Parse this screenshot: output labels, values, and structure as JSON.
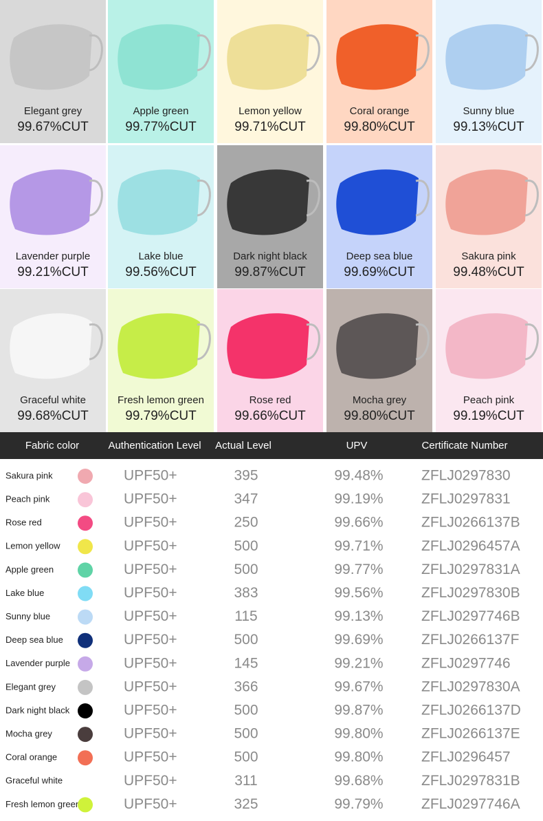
{
  "tiles": [
    {
      "name": "Elegant grey",
      "cut": "99.67%CUT",
      "background": "#d9d9d9",
      "color": "#c6c6c6"
    },
    {
      "name": "Apple green",
      "cut": "99.77%CUT",
      "background": "#b9f1e7",
      "color": "#8fe3d3"
    },
    {
      "name": "Lemon yellow",
      "cut": "99.71%CUT",
      "background": "#fff7dd",
      "color": "#eedf98"
    },
    {
      "name": "Coral orange",
      "cut": "99.80%CUT",
      "background": "#ffd7c2",
      "color": "#f0602a"
    },
    {
      "name": "Sunny blue",
      "cut": "99.13%CUT",
      "background": "#e5f2fc",
      "color": "#aecff0"
    },
    {
      "name": "Lavender purple",
      "cut": "99.21%CUT",
      "background": "#f6edfc",
      "color": "#b598e6"
    },
    {
      "name": "Lake blue",
      "cut": "99.56%CUT",
      "background": "#d5f3f5",
      "color": "#9de0e3"
    },
    {
      "name": "Dark night black",
      "cut": "99.87%CUT",
      "background": "#a8a8a8",
      "color": "#383838"
    },
    {
      "name": "Deep sea blue",
      "cut": "99.69%CUT",
      "background": "#c5d3fa",
      "color": "#1f4fd6"
    },
    {
      "name": "Sakura pink",
      "cut": "99.48%CUT",
      "background": "#fbe1dc",
      "color": "#f0a398"
    },
    {
      "name": "Graceful white",
      "cut": "99.68%CUT",
      "background": "#e4e4e4",
      "color": "#f6f6f6"
    },
    {
      "name": "Fresh lemon green",
      "cut": "99.79%CUT",
      "background": "#f1fad4",
      "color": "#c6ed48"
    },
    {
      "name": "Rose red",
      "cut": "99.66%CUT",
      "background": "#fbd5e7",
      "color": "#f4336a"
    },
    {
      "name": "Mocha grey",
      "cut": "99.80%CUT",
      "background": "#bdb2ad",
      "color": "#5d5757"
    },
    {
      "name": "Peach pink",
      "cut": "99.19%CUT",
      "background": "#fbe7f0",
      "color": "#f3b7c7"
    }
  ],
  "table": {
    "header": [
      "Fabric color",
      "Authentication Level",
      "Actual Level",
      "UPV",
      "Certificate Number"
    ],
    "rows": [
      {
        "name": "Sakura pink",
        "color": "#f0a9b0",
        "level": "UPF50+",
        "actual": "395",
        "upv": "99.48%",
        "cert": "ZFLJ0297830"
      },
      {
        "name": "Peach pink",
        "color": "#f9c5d8",
        "level": "UPF50+",
        "actual": "347",
        "upv": "99.19%",
        "cert": "ZFLJ0297831"
      },
      {
        "name": "Rose red",
        "color": "#f34b83",
        "level": "UPF50+",
        "actual": "250",
        "upv": "99.66%",
        "cert": "ZFLJ0266137B"
      },
      {
        "name": "Lemon yellow",
        "color": "#f0e64a",
        "level": "UPF50+",
        "actual": "500",
        "upv": "99.71%",
        "cert": "ZFLJ0296457A"
      },
      {
        "name": "Apple green",
        "color": "#5fd3a6",
        "level": "UPF50+",
        "actual": "500",
        "upv": "99.77%",
        "cert": "ZFLJ0297831A"
      },
      {
        "name": "Lake blue",
        "color": "#80dcf5",
        "level": "UPF50+",
        "actual": "383",
        "upv": "99.56%",
        "cert": "ZFLJ0297830B"
      },
      {
        "name": "Sunny blue",
        "color": "#bcdaf5",
        "level": "UPF50+",
        "actual": "115",
        "upv": "99.13%",
        "cert": "ZFLJ0297746B"
      },
      {
        "name": "Deep sea blue",
        "color": "#10307a",
        "level": "UPF50+",
        "actual": "500",
        "upv": "99.69%",
        "cert": "ZFLJ0266137F"
      },
      {
        "name": "Lavender purple",
        "color": "#c6a9e8",
        "level": "UPF50+",
        "actual": "145",
        "upv": "99.21%",
        "cert": "ZFLJ0297746"
      },
      {
        "name": "Elegant grey",
        "color": "#c4c4c4",
        "level": "UPF50+",
        "actual": "366",
        "upv": "99.67%",
        "cert": "ZFLJ0297830A"
      },
      {
        "name": "Dark night black",
        "color": "#000000",
        "level": "UPF50+",
        "actual": "500",
        "upv": "99.87%",
        "cert": "ZFLJ0266137D"
      },
      {
        "name": "Mocha grey",
        "color": "#4a3d3d",
        "level": "UPF50+",
        "actual": "500",
        "upv": "99.80%",
        "cert": "ZFLJ0266137E"
      },
      {
        "name": "Coral orange",
        "color": "#f26f55",
        "level": "UPF50+",
        "actual": "500",
        "upv": "99.80%",
        "cert": "ZFLJ0296457"
      },
      {
        "name": "Graceful white",
        "color": "#ffffff",
        "level": "UPF50+",
        "actual": "311",
        "upv": "99.68%",
        "cert": "ZFLJ0297831B"
      },
      {
        "name": "Fresh lemon green",
        "color": "#cff23a",
        "level": "UPF50+",
        "actual": "325",
        "upv": "99.79%",
        "cert": "ZFLJ0297746A"
      }
    ]
  }
}
